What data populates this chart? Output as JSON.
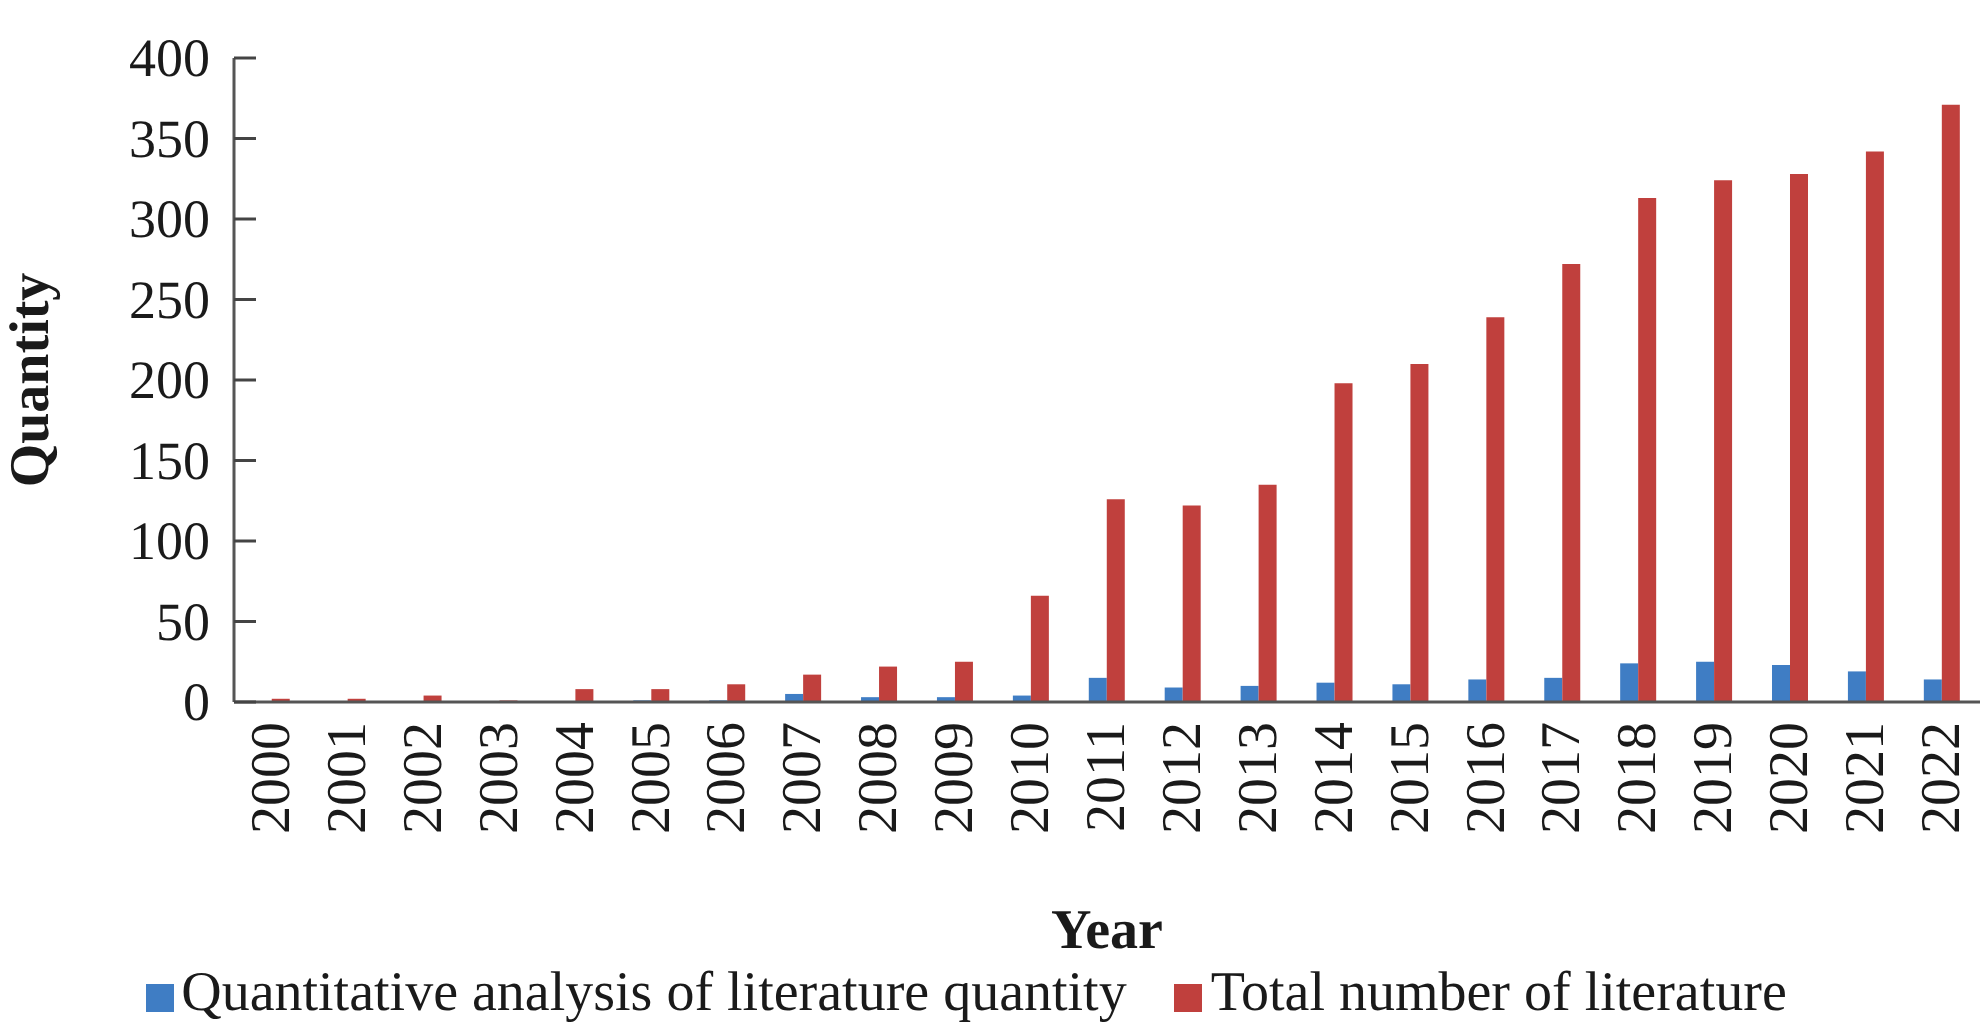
{
  "chart_data": {
    "type": "bar",
    "xlabel": "Year",
    "ylabel": "Quantity",
    "categories": [
      "2000",
      "2001",
      "2002",
      "2003",
      "2004",
      "2005",
      "2006",
      "2007",
      "2008",
      "2009",
      "2010",
      "2011",
      "2012",
      "2013",
      "2014",
      "2015",
      "2016",
      "2017",
      "2018",
      "2019",
      "2020",
      "2021",
      "2022"
    ],
    "series": [
      {
        "name": "Quantitative analysis of literature quantity",
        "color": "#3f7dc4",
        "values": [
          0,
          0,
          0,
          0,
          0,
          1,
          1,
          5,
          3,
          3,
          4,
          15,
          9,
          10,
          12,
          11,
          14,
          15,
          24,
          25,
          23,
          19,
          14
        ]
      },
      {
        "name": "Total number of literature",
        "color": "#c0403d",
        "values": [
          2,
          2,
          4,
          1,
          8,
          8,
          11,
          17,
          22,
          25,
          66,
          126,
          122,
          135,
          198,
          210,
          239,
          272,
          313,
          324,
          328,
          342,
          371
        ]
      }
    ],
    "ylim": [
      0,
      400
    ],
    "yticks": [
      0,
      50,
      100,
      150,
      200,
      250,
      300,
      350,
      400
    ],
    "grid": false,
    "legend": "bottom"
  }
}
